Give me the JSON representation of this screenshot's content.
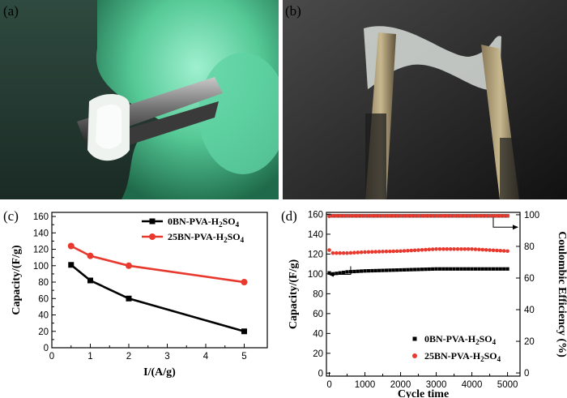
{
  "panels": {
    "a": "(a)",
    "b": "(b)",
    "c": "(c)",
    "d": "(d)"
  },
  "colors": {
    "series_0bn": "#000000",
    "series_25bn": "#e8392f",
    "glove": "#4fc79a",
    "photo_b_bg": "#2a2a2a"
  },
  "chart_data": [
    {
      "type": "line",
      "panel": "c",
      "xlabel": "I/(A/g)",
      "ylabel": "Capacity/(F/g)",
      "xlim": [
        0,
        5.6
      ],
      "ylim": [
        0,
        165
      ],
      "x_ticks": [
        0,
        1,
        2,
        3,
        4,
        5
      ],
      "y_ticks": [
        0,
        20,
        40,
        60,
        80,
        100,
        120,
        140,
        160
      ],
      "legend_position": "top-right",
      "grid": false,
      "series": [
        {
          "name": "0BN-PVA-H2SO4",
          "name_base": "0BN-PVA-H",
          "name_sub1": "2",
          "name_mid": "SO",
          "name_sub2": "4",
          "marker": "square",
          "color": "#000000",
          "x": [
            0.5,
            1,
            2,
            5
          ],
          "y": [
            101,
            82,
            60,
            20
          ]
        },
        {
          "name": "25BN-PVA-H2SO4",
          "name_base": "25BN-PVA-H",
          "name_sub1": "2",
          "name_mid": "SO",
          "name_sub2": "4",
          "marker": "circle",
          "color": "#e8392f",
          "x": [
            0.5,
            1,
            2,
            5
          ],
          "y": [
            124,
            112,
            100,
            80
          ]
        }
      ]
    },
    {
      "type": "scatter",
      "panel": "d",
      "xlabel": "Cycle time",
      "ylabel": "Capacity/(F/g)",
      "y2label": "Coulombic Efficiency (%)",
      "xlim": [
        -80,
        5350
      ],
      "ylim": [
        -3,
        162
      ],
      "y2lim": [
        -2,
        101.5
      ],
      "x_ticks": [
        0,
        1000,
        2000,
        3000,
        4000,
        5000
      ],
      "y_ticks": [
        0,
        20,
        40,
        60,
        80,
        100,
        120,
        140,
        160
      ],
      "y2_ticks": [
        0,
        20,
        40,
        60,
        80,
        100
      ],
      "legend_position": "bottom-right",
      "grid": false,
      "series": [
        {
          "name": "0BN-PVA-H2SO4",
          "name_base": "0BN-PVA-H",
          "name_sub1": "2",
          "name_mid": "SO",
          "name_sub2": "4",
          "marker": "square",
          "color": "#000000",
          "axis": "left",
          "x_start": 0,
          "x_end": 5000,
          "x_step": 100,
          "capacity_profile": [
            [
              0,
              101
            ],
            [
              100,
              100
            ],
            [
              500,
              102
            ],
            [
              1000,
              103
            ],
            [
              2000,
              104
            ],
            [
              3000,
              105
            ],
            [
              4000,
              105
            ],
            [
              5000,
              105
            ]
          ],
          "efficiency_start": 99.5,
          "efficiency": 99.3
        },
        {
          "name": "25BN-PVA-H2SO4",
          "name_base": "25BN-PVA-H",
          "name_sub1": "2",
          "name_mid": "SO",
          "name_sub2": "4",
          "marker": "circle",
          "color": "#e8392f",
          "axis": "left",
          "x_start": 0,
          "x_end": 5000,
          "x_step": 100,
          "capacity_profile": [
            [
              0,
              124
            ],
            [
              100,
              121
            ],
            [
              500,
              121
            ],
            [
              1000,
              122
            ],
            [
              2000,
              123
            ],
            [
              3000,
              125
            ],
            [
              4000,
              125
            ],
            [
              5000,
              123
            ]
          ],
          "efficiency_start": 99.0,
          "efficiency": 99.3
        }
      ]
    }
  ]
}
